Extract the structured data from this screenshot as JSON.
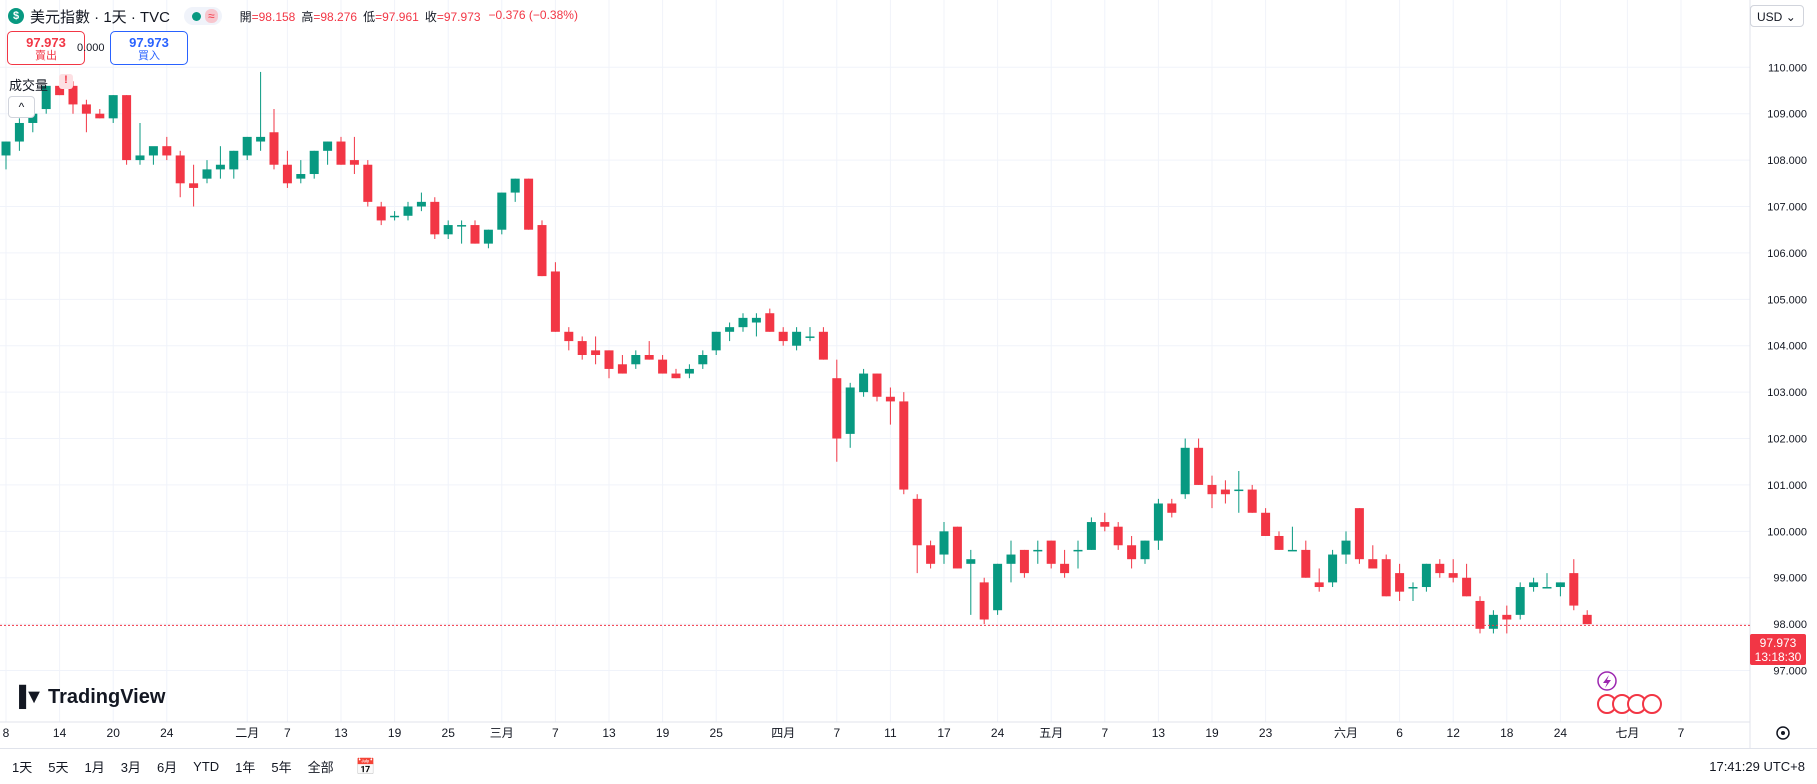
{
  "header": {
    "currency_symbol": "$",
    "title": "美元指數 · 1天 · TVC",
    "ohlc": [
      {
        "label": "開",
        "value": "=98.158"
      },
      {
        "label": "高",
        "value": "=98.276"
      },
      {
        "label": "低",
        "value": "=97.961"
      },
      {
        "label": "收",
        "value": "=97.973"
      }
    ],
    "change": "−0.376 (−0.38%)"
  },
  "trade": {
    "sell_price": "97.973",
    "sell_label": "賣出",
    "spread": "0.000",
    "buy_price": "97.973",
    "buy_label": "買入"
  },
  "volume_label": "成交量",
  "warn_glyph": "!",
  "collapse_glyph": "^",
  "currency_select": "USD",
  "logo_text": "TradingView",
  "price_tag": {
    "price": "97.973",
    "countdown": "13:18:30"
  },
  "bottom_bar": {
    "ranges": [
      "1天",
      "5天",
      "1月",
      "3月",
      "6月",
      "YTD",
      "1年",
      "5年",
      "全部"
    ],
    "time": "17:41:29 UTC+8"
  },
  "colors": {
    "up": "#089981",
    "down": "#f23645"
  },
  "chart_data": {
    "type": "candlestick",
    "y_ticks": [
      "97.000",
      "98.000",
      "99.000",
      "100.000",
      "101.000",
      "102.000",
      "103.000",
      "104.000",
      "105.000",
      "106.000",
      "107.000",
      "108.000",
      "109.000",
      "110.000"
    ],
    "ylim": [
      96.15,
      111.45
    ],
    "last_price": 97.973,
    "x_labels": [
      {
        "i": 0,
        "t": "8"
      },
      {
        "i": 4,
        "t": "14"
      },
      {
        "i": 8,
        "t": "20"
      },
      {
        "i": 12,
        "t": "24"
      },
      {
        "i": 18,
        "t": "二月"
      },
      {
        "i": 21,
        "t": "7"
      },
      {
        "i": 25,
        "t": "13"
      },
      {
        "i": 29,
        "t": "19"
      },
      {
        "i": 33,
        "t": "25"
      },
      {
        "i": 37,
        "t": "三月"
      },
      {
        "i": 41,
        "t": "7"
      },
      {
        "i": 45,
        "t": "13"
      },
      {
        "i": 49,
        "t": "19"
      },
      {
        "i": 53,
        "t": "25"
      },
      {
        "i": 58,
        "t": "四月"
      },
      {
        "i": 62,
        "t": "7"
      },
      {
        "i": 66,
        "t": "11"
      },
      {
        "i": 70,
        "t": "17"
      },
      {
        "i": 74,
        "t": "24"
      },
      {
        "i": 78,
        "t": "五月"
      },
      {
        "i": 82,
        "t": "7"
      },
      {
        "i": 86,
        "t": "13"
      },
      {
        "i": 90,
        "t": "19"
      },
      {
        "i": 94,
        "t": "23"
      },
      {
        "i": 100,
        "t": "六月"
      },
      {
        "i": 104,
        "t": "6"
      },
      {
        "i": 108,
        "t": "12"
      },
      {
        "i": 112,
        "t": "18"
      },
      {
        "i": 116,
        "t": "24"
      },
      {
        "i": 121,
        "t": "七月"
      },
      {
        "i": 125,
        "t": "7"
      }
    ],
    "candles": [
      [
        108.1,
        108.4,
        107.8,
        108.4
      ],
      [
        108.4,
        108.9,
        108.2,
        108.8
      ],
      [
        108.8,
        109.2,
        108.6,
        109.0
      ],
      [
        109.1,
        109.6,
        109.0,
        109.6
      ],
      [
        109.6,
        109.7,
        109.4,
        109.4
      ],
      [
        109.6,
        109.7,
        109.0,
        109.2
      ],
      [
        109.2,
        109.3,
        108.6,
        109.0
      ],
      [
        109.0,
        109.1,
        108.9,
        108.9
      ],
      [
        108.9,
        109.4,
        108.8,
        109.4
      ],
      [
        109.4,
        109.4,
        107.9,
        108.0
      ],
      [
        108.0,
        108.8,
        107.9,
        108.1
      ],
      [
        108.1,
        108.2,
        107.9,
        108.3
      ],
      [
        108.3,
        108.5,
        108.0,
        108.1
      ],
      [
        108.1,
        108.2,
        107.2,
        107.5
      ],
      [
        107.5,
        107.9,
        107.0,
        107.4
      ],
      [
        107.6,
        108.0,
        107.5,
        107.8
      ],
      [
        107.8,
        108.3,
        107.6,
        107.9
      ],
      [
        107.8,
        108.2,
        107.6,
        108.2
      ],
      [
        108.1,
        108.5,
        108.0,
        108.5
      ],
      [
        108.4,
        109.9,
        108.2,
        108.5
      ],
      [
        108.6,
        109.1,
        107.8,
        107.9
      ],
      [
        107.9,
        108.2,
        107.4,
        107.5
      ],
      [
        107.6,
        108.0,
        107.5,
        107.7
      ],
      [
        107.7,
        108.2,
        107.6,
        108.2
      ],
      [
        108.2,
        108.4,
        107.9,
        108.4
      ],
      [
        108.4,
        108.5,
        107.9,
        107.9
      ],
      [
        108.0,
        108.5,
        107.7,
        107.9
      ],
      [
        107.9,
        108.0,
        107.0,
        107.1
      ],
      [
        107.0,
        107.1,
        106.6,
        106.7
      ],
      [
        106.8,
        106.9,
        106.7,
        106.8
      ],
      [
        106.8,
        107.1,
        106.7,
        107.0
      ],
      [
        107.0,
        107.3,
        106.9,
        107.1
      ],
      [
        107.1,
        107.2,
        106.3,
        106.4
      ],
      [
        106.4,
        106.7,
        106.3,
        106.6
      ],
      [
        106.6,
        106.7,
        106.2,
        106.6
      ],
      [
        106.6,
        106.7,
        106.2,
        106.2
      ],
      [
        106.2,
        106.5,
        106.1,
        106.5
      ],
      [
        106.5,
        107.3,
        106.4,
        107.3
      ],
      [
        107.3,
        107.6,
        107.1,
        107.6
      ],
      [
        107.6,
        107.6,
        106.5,
        106.5
      ],
      [
        106.6,
        106.7,
        105.5,
        105.5
      ],
      [
        105.6,
        105.8,
        104.3,
        104.3
      ],
      [
        104.3,
        104.4,
        103.9,
        104.1
      ],
      [
        104.1,
        104.2,
        103.7,
        103.8
      ],
      [
        103.9,
        104.2,
        103.6,
        103.8
      ],
      [
        103.9,
        103.9,
        103.3,
        103.5
      ],
      [
        103.6,
        103.8,
        103.4,
        103.4
      ],
      [
        103.6,
        103.9,
        103.5,
        103.8
      ],
      [
        103.8,
        104.1,
        103.7,
        103.7
      ],
      [
        103.7,
        103.8,
        103.4,
        103.4
      ],
      [
        103.4,
        103.5,
        103.3,
        103.3
      ],
      [
        103.4,
        103.6,
        103.3,
        103.5
      ],
      [
        103.6,
        103.9,
        103.5,
        103.8
      ],
      [
        103.9,
        104.3,
        103.8,
        104.3
      ],
      [
        104.3,
        104.5,
        104.1,
        104.4
      ],
      [
        104.4,
        104.7,
        104.3,
        104.6
      ],
      [
        104.5,
        104.7,
        104.2,
        104.6
      ],
      [
        104.7,
        104.8,
        104.3,
        104.3
      ],
      [
        104.3,
        104.4,
        104.0,
        104.1
      ],
      [
        104.0,
        104.4,
        103.9,
        104.3
      ],
      [
        104.2,
        104.4,
        104.1,
        104.2
      ],
      [
        104.3,
        104.4,
        103.7,
        103.7
      ],
      [
        103.3,
        103.7,
        101.5,
        102.0
      ],
      [
        102.1,
        103.2,
        101.8,
        103.1
      ],
      [
        103.0,
        103.5,
        102.9,
        103.4
      ],
      [
        103.4,
        103.4,
        102.8,
        102.9
      ],
      [
        102.9,
        103.1,
        102.3,
        102.8
      ],
      [
        102.8,
        103.0,
        100.8,
        100.9
      ],
      [
        100.7,
        100.8,
        99.1,
        99.7
      ],
      [
        99.7,
        99.8,
        99.2,
        99.3
      ],
      [
        99.5,
        100.2,
        99.3,
        100.0
      ],
      [
        100.1,
        100.1,
        99.2,
        99.2
      ],
      [
        99.3,
        99.6,
        98.2,
        99.4
      ],
      [
        98.9,
        99.0,
        98.0,
        98.1
      ],
      [
        98.3,
        99.3,
        98.2,
        99.3
      ],
      [
        99.3,
        99.8,
        98.9,
        99.5
      ],
      [
        99.6,
        99.6,
        99.0,
        99.1
      ],
      [
        99.6,
        99.8,
        99.3,
        99.6
      ],
      [
        99.8,
        99.8,
        99.2,
        99.3
      ],
      [
        99.3,
        99.6,
        99.0,
        99.1
      ],
      [
        99.6,
        99.8,
        99.2,
        99.6
      ],
      [
        99.6,
        100.3,
        99.6,
        100.2
      ],
      [
        100.2,
        100.4,
        100.0,
        100.1
      ],
      [
        100.1,
        100.2,
        99.6,
        99.7
      ],
      [
        99.7,
        99.9,
        99.2,
        99.4
      ],
      [
        99.4,
        99.8,
        99.3,
        99.8
      ],
      [
        99.8,
        100.7,
        99.6,
        100.6
      ],
      [
        100.6,
        100.7,
        100.3,
        100.4
      ],
      [
        100.8,
        102.0,
        100.7,
        101.8
      ],
      [
        101.8,
        102.0,
        101.0,
        101.0
      ],
      [
        101.0,
        101.2,
        100.5,
        100.8
      ],
      [
        100.9,
        101.1,
        100.6,
        100.8
      ],
      [
        100.9,
        101.3,
        100.4,
        100.9
      ],
      [
        100.9,
        101.0,
        100.4,
        100.4
      ],
      [
        100.4,
        100.5,
        99.9,
        99.9
      ],
      [
        99.9,
        100.0,
        99.6,
        99.6
      ],
      [
        99.6,
        100.1,
        99.6,
        99.6
      ],
      [
        99.6,
        99.8,
        99.0,
        99.0
      ],
      [
        98.9,
        99.2,
        98.7,
        98.8
      ],
      [
        98.9,
        99.6,
        98.8,
        99.5
      ],
      [
        99.5,
        100.0,
        99.3,
        99.8
      ],
      [
        100.5,
        100.5,
        99.3,
        99.4
      ],
      [
        99.4,
        99.7,
        99.2,
        99.2
      ],
      [
        99.4,
        99.5,
        98.6,
        98.6
      ],
      [
        99.1,
        99.3,
        98.5,
        98.7
      ],
      [
        98.8,
        98.9,
        98.5,
        98.8
      ],
      [
        98.8,
        99.3,
        98.7,
        99.3
      ],
      [
        99.3,
        99.4,
        99.0,
        99.1
      ],
      [
        99.1,
        99.4,
        98.9,
        99.0
      ],
      [
        99.0,
        99.3,
        98.6,
        98.6
      ],
      [
        98.5,
        98.6,
        97.8,
        97.9
      ],
      [
        97.9,
        98.3,
        97.8,
        98.2
      ],
      [
        98.2,
        98.4,
        97.8,
        98.1
      ],
      [
        98.2,
        98.9,
        98.1,
        98.8
      ],
      [
        98.8,
        99.0,
        98.7,
        98.9
      ],
      [
        98.8,
        99.1,
        98.8,
        98.8
      ],
      [
        98.8,
        98.9,
        98.6,
        98.9
      ],
      [
        99.1,
        99.4,
        98.3,
        98.4
      ],
      [
        98.2,
        98.3,
        98.0,
        98.0
      ]
    ]
  }
}
